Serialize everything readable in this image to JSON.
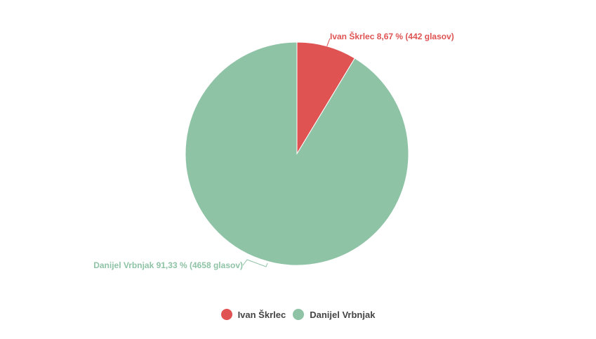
{
  "chart_data": {
    "type": "pie",
    "series": [
      {
        "name": "Ivan Škrlec",
        "value": 442,
        "percent": 8.67,
        "label": "Ivan Škrlec 8,67 % (442 glasov)",
        "color": "#df5353"
      },
      {
        "name": "Danijel Vrbnjak",
        "value": 4658,
        "percent": 91.33,
        "label": "Danijel Vrbnjak 91,33 % (4658 glasov)",
        "color": "#8fc3a6"
      }
    ],
    "legend_position": "bottom-center"
  },
  "legend": {
    "items": [
      {
        "label": "Ivan Škrlec",
        "color": "#df5353"
      },
      {
        "label": "Danijel Vrbnjak",
        "color": "#8fc3a6"
      }
    ]
  }
}
